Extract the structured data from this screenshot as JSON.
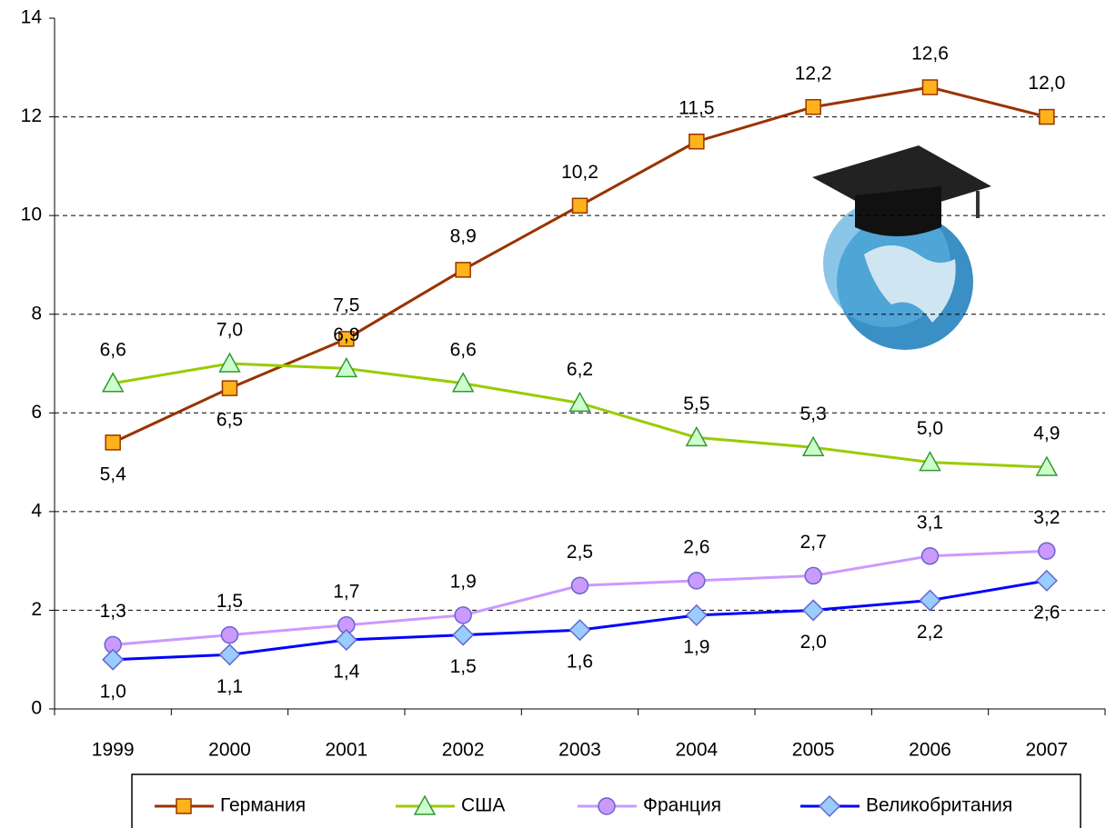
{
  "chart_data": {
    "type": "line",
    "categories": [
      "1999",
      "2000",
      "2001",
      "2002",
      "2003",
      "2004",
      "2005",
      "2006",
      "2007"
    ],
    "series": [
      {
        "name": "Германия",
        "color": "#993300",
        "marker": "square",
        "marker_color": "#ffb31a",
        "values": [
          5.4,
          6.5,
          7.5,
          8.9,
          10.2,
          11.5,
          12.2,
          12.6,
          12.0
        ],
        "value_labels": [
          "5,4",
          "6,5",
          "7,5",
          "8,9",
          "10,2",
          "11,5",
          "12,2",
          "12,6",
          "12,0"
        ]
      },
      {
        "name": "США",
        "color": "#99cc00",
        "marker": "triangle",
        "marker_color": "#ccffcc",
        "values": [
          6.6,
          7.0,
          6.9,
          6.6,
          6.2,
          5.5,
          5.3,
          5.0,
          4.9
        ],
        "value_labels": [
          "6,6",
          "7,0",
          "6,9",
          "6,6",
          "6,2",
          "5,5",
          "5,3",
          "5,0",
          "4,9"
        ]
      },
      {
        "name": "Франция",
        "color": "#cc99ff",
        "marker": "circle",
        "marker_color": "#cc99ff",
        "values": [
          1.3,
          1.5,
          1.7,
          1.9,
          2.5,
          2.6,
          2.7,
          3.1,
          3.2
        ],
        "value_labels": [
          "1,3",
          "1,5",
          "1,7",
          "1,9",
          "2,5",
          "2,6",
          "2,7",
          "3,1",
          "3,2"
        ]
      },
      {
        "name": "Великобритания",
        "color": "#0000ff",
        "marker": "diamond",
        "marker_color": "#99ccff",
        "values": [
          1.0,
          1.1,
          1.4,
          1.5,
          1.6,
          1.9,
          2.0,
          2.2,
          2.6
        ],
        "value_labels": [
          "1,0",
          "1,1",
          "1,4",
          "1,5",
          "1,6",
          "1,9",
          "2,0",
          "2,2",
          "2,6"
        ]
      }
    ],
    "ylim": [
      0,
      14
    ],
    "yticks": [
      0,
      2,
      4,
      6,
      8,
      10,
      12,
      14
    ],
    "grid": true
  }
}
